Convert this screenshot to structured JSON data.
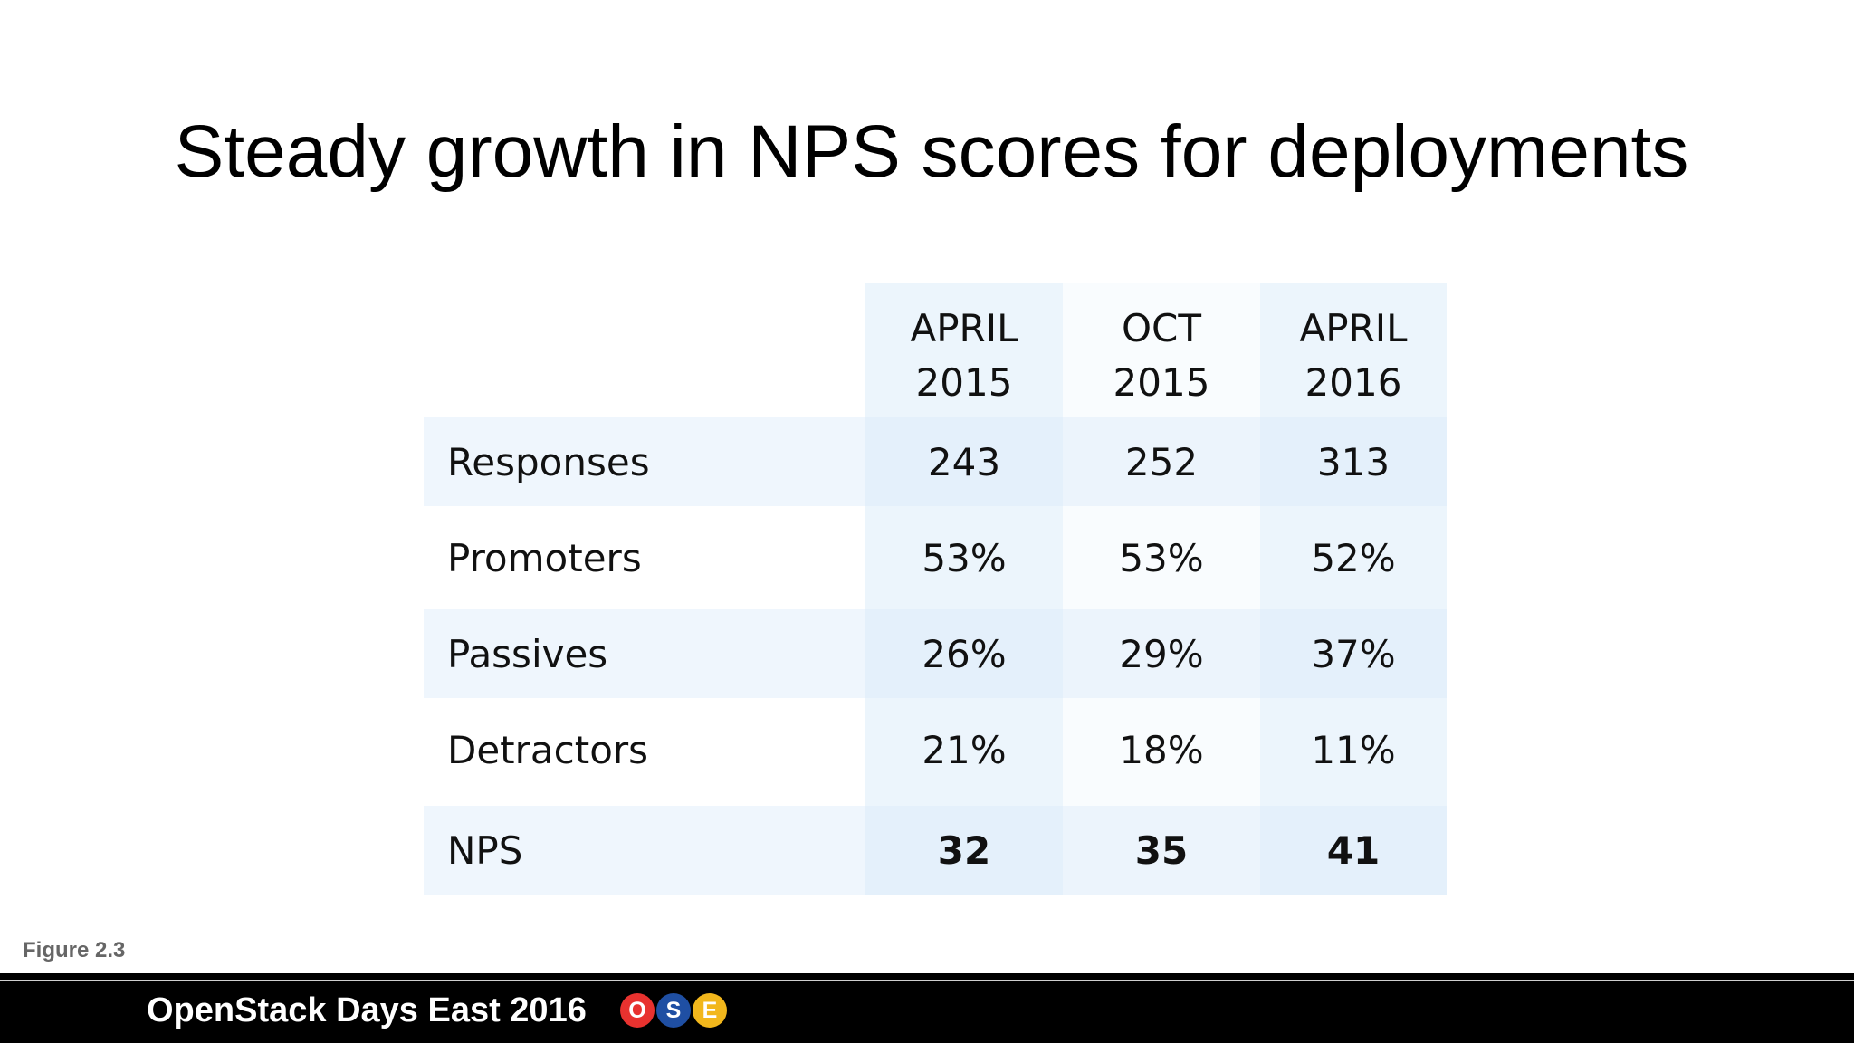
{
  "title": "Steady growth in NPS scores for deployments",
  "table": {
    "headers": [
      {
        "line1": "APRIL",
        "line2": "2015"
      },
      {
        "line1": "OCT",
        "line2": "2015"
      },
      {
        "line1": "APRIL",
        "line2": "2016"
      }
    ],
    "rows": [
      {
        "label": "Responses",
        "values": [
          "243",
          "252",
          "313"
        ]
      },
      {
        "label": "Promoters",
        "values": [
          "53%",
          "53%",
          "52%"
        ]
      },
      {
        "label": "Passives",
        "values": [
          "26%",
          "29%",
          "37%"
        ]
      },
      {
        "label": "Detractors",
        "values": [
          "21%",
          "18%",
          "11%"
        ]
      },
      {
        "label": "NPS",
        "values": [
          "32",
          "35",
          "41"
        ]
      }
    ]
  },
  "figure_label": "Figure 2.3",
  "footer": {
    "text": "OpenStack Days East 2016",
    "badges": [
      {
        "letter": "O",
        "color": "#e8322f"
      },
      {
        "letter": "S",
        "color": "#1f4fa3"
      },
      {
        "letter": "E",
        "color": "#f2b71c"
      }
    ]
  },
  "colors": {
    "column_tint": "#e6f1fb",
    "row_band": "#eef5fc"
  }
}
